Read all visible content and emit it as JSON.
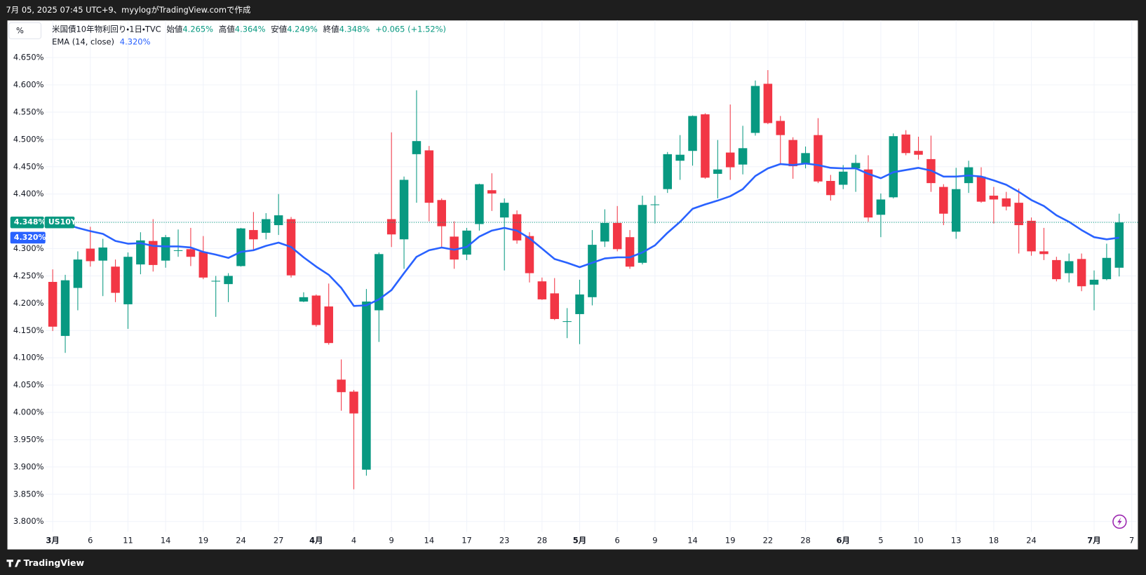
{
  "header": {
    "caption": "7月 05, 2025 07:45 UTC+9、myylogがTradingView.comで作成",
    "unit_button": "%",
    "brand": "TradingView"
  },
  "chart_data": {
    "type": "candlestick",
    "legend": {
      "title": "米国債10年物利回り・1日・TVC",
      "open_label": "始値",
      "open": "4.265%",
      "high_label": "高値",
      "high": "4.364%",
      "low_label": "安値",
      "low": "4.249%",
      "close_label": "終値",
      "close": "4.348%",
      "change": "+0.065 (+1.52%)"
    },
    "price_badge": "4.348%",
    "symbol": "US10Y",
    "ema_badge": "4.320%",
    "up_color": "#089981",
    "down_color": "#f23645",
    "grid": true,
    "ylim": [
      3.781,
      4.718
    ],
    "yticks": [
      {
        "value": 3.8,
        "label": "3.800%"
      },
      {
        "value": 3.85,
        "label": "3.850%"
      },
      {
        "value": 3.9,
        "label": "3.900%"
      },
      {
        "value": 3.95,
        "label": "3.950%"
      },
      {
        "value": 4.0,
        "label": "4.000%"
      },
      {
        "value": 4.05,
        "label": "4.050%"
      },
      {
        "value": 4.1,
        "label": "4.100%"
      },
      {
        "value": 4.15,
        "label": "4.150%"
      },
      {
        "value": 4.2,
        "label": "4.200%"
      },
      {
        "value": 4.25,
        "label": "4.250%"
      },
      {
        "value": 4.3,
        "label": "4.300%"
      },
      {
        "value": 4.35,
        "label": "4.350%"
      },
      {
        "value": 4.4,
        "label": "4.400%"
      },
      {
        "value": 4.45,
        "label": "4.450%"
      },
      {
        "value": 4.5,
        "label": "4.500%"
      },
      {
        "value": 4.55,
        "label": "4.550%"
      },
      {
        "value": 4.6,
        "label": "4.600%"
      },
      {
        "value": 4.65,
        "label": "4.650%"
      }
    ],
    "categories": [
      "3月",
      null,
      null,
      "6",
      null,
      null,
      "11",
      null,
      null,
      "14",
      null,
      null,
      "19",
      null,
      null,
      "24",
      null,
      null,
      "27",
      null,
      null,
      "4月",
      null,
      null,
      "4",
      null,
      null,
      "9",
      null,
      null,
      "14",
      null,
      null,
      "17",
      null,
      null,
      "23",
      null,
      null,
      "28",
      null,
      null,
      "5月",
      null,
      null,
      "6",
      null,
      null,
      "9",
      null,
      null,
      "14",
      null,
      null,
      "19",
      null,
      null,
      "22",
      null,
      null,
      "28",
      null,
      null,
      "6月",
      null,
      null,
      "5",
      null,
      null,
      "10",
      null,
      null,
      "13",
      null,
      null,
      "18",
      null,
      null,
      "24",
      null,
      null,
      null,
      null,
      "7月",
      null,
      null,
      "7"
    ],
    "open": [
      4.239,
      4.14,
      4.228,
      4.3,
      4.278,
      4.267,
      4.198,
      4.271,
      4.314,
      4.278,
      4.296,
      4.299,
      4.294,
      4.24,
      4.235,
      4.268,
      4.334,
      4.329,
      4.343,
      4.354,
      4.203,
      4.214,
      4.194,
      4.06,
      4.038,
      3.895,
      4.187,
      4.354,
      4.317,
      4.473,
      4.48,
      4.389,
      4.322,
      4.289,
      4.345,
      4.407,
      4.357,
      4.363,
      4.323,
      4.24,
      4.218,
      4.166,
      4.18,
      4.211,
      4.313,
      4.347,
      4.321,
      4.274,
      4.38,
      4.409,
      4.461,
      4.479,
      4.546,
      4.437,
      4.476,
      4.454,
      4.512,
      4.602,
      4.534,
      4.499,
      4.456,
      4.508,
      4.424,
      4.417,
      4.447,
      4.445,
      4.362,
      4.394,
      4.509,
      4.479,
      4.464,
      4.413,
      4.331,
      4.42,
      4.432,
      4.397,
      4.392,
      4.384,
      4.351,
      4.295,
      4.279,
      4.255,
      4.281,
      4.234,
      4.244,
      4.265,
      null
    ],
    "high": [
      4.262,
      4.252,
      4.295,
      4.34,
      4.318,
      4.28,
      4.293,
      4.33,
      4.354,
      4.325,
      4.335,
      4.338,
      4.323,
      4.25,
      4.255,
      4.338,
      4.367,
      4.365,
      4.4,
      4.358,
      4.22,
      4.216,
      4.236,
      4.097,
      4.041,
      4.226,
      4.293,
      4.513,
      4.432,
      4.59,
      4.488,
      4.392,
      4.35,
      4.338,
      4.419,
      4.438,
      4.392,
      4.37,
      4.33,
      4.247,
      4.246,
      4.191,
      4.243,
      4.334,
      4.372,
      4.378,
      4.334,
      4.397,
      4.397,
      4.477,
      4.508,
      4.544,
      4.548,
      4.499,
      4.564,
      4.525,
      4.608,
      4.627,
      4.543,
      4.504,
      4.487,
      4.539,
      4.435,
      4.453,
      4.472,
      4.471,
      4.401,
      4.511,
      4.517,
      4.505,
      4.507,
      4.418,
      4.448,
      4.461,
      4.449,
      4.413,
      4.404,
      4.41,
      4.357,
      4.338,
      4.285,
      4.291,
      4.291,
      4.26,
      4.309,
      4.364,
      null
    ],
    "low": [
      4.149,
      4.109,
      4.187,
      4.267,
      4.213,
      4.202,
      4.153,
      4.253,
      4.258,
      4.265,
      4.285,
      4.268,
      4.244,
      4.175,
      4.202,
      4.267,
      4.298,
      4.317,
      4.325,
      4.247,
      4.202,
      4.157,
      4.124,
      4.003,
      3.859,
      3.884,
      4.129,
      4.303,
      4.263,
      4.384,
      4.35,
      4.301,
      4.263,
      4.279,
      4.333,
      4.369,
      4.26,
      4.309,
      4.238,
      4.206,
      4.169,
      4.136,
      4.125,
      4.196,
      4.303,
      4.295,
      4.263,
      4.271,
      4.346,
      4.402,
      4.426,
      4.452,
      4.428,
      4.392,
      4.426,
      4.436,
      4.507,
      4.528,
      4.453,
      4.428,
      4.447,
      4.42,
      4.388,
      4.409,
      4.404,
      4.349,
      4.321,
      4.392,
      4.471,
      4.463,
      4.404,
      4.343,
      4.318,
      4.402,
      4.384,
      4.346,
      4.37,
      4.291,
      4.287,
      4.279,
      4.24,
      4.238,
      4.222,
      4.187,
      4.242,
      4.249,
      null
    ],
    "close": [
      4.157,
      4.242,
      4.28,
      4.277,
      4.302,
      4.219,
      4.285,
      4.315,
      4.27,
      4.321,
      4.297,
      4.285,
      4.247,
      4.241,
      4.25,
      4.337,
      4.317,
      4.354,
      4.361,
      4.251,
      4.211,
      4.16,
      4.127,
      4.037,
      3.998,
      4.203,
      4.29,
      4.326,
      4.426,
      4.497,
      4.384,
      4.341,
      4.28,
      4.333,
      4.418,
      4.401,
      4.384,
      4.315,
      4.255,
      4.207,
      4.171,
      4.167,
      4.216,
      4.307,
      4.347,
      4.299,
      4.267,
      4.38,
      4.381,
      4.473,
      4.472,
      4.543,
      4.43,
      4.445,
      4.449,
      4.484,
      4.598,
      4.53,
      4.508,
      4.451,
      4.475,
      4.423,
      4.398,
      4.441,
      4.457,
      4.357,
      4.39,
      4.506,
      4.475,
      4.472,
      4.42,
      4.364,
      4.409,
      4.449,
      4.386,
      4.39,
      4.377,
      4.343,
      4.295,
      4.29,
      4.244,
      4.277,
      4.231,
      4.243,
      4.283,
      4.348,
      null
    ],
    "series": [
      {
        "name": "EMA (14, close)",
        "color": "#2962ff",
        "last_label": "4.320%",
        "values": [
          4.355,
          4.345,
          4.338,
          4.332,
          4.327,
          4.314,
          4.309,
          4.31,
          4.305,
          4.304,
          4.304,
          4.302,
          4.294,
          4.289,
          4.283,
          4.294,
          4.297,
          4.305,
          4.311,
          4.303,
          4.284,
          4.267,
          4.252,
          4.228,
          4.195,
          4.196,
          4.207,
          4.224,
          4.255,
          4.285,
          4.297,
          4.302,
          4.298,
          4.303,
          4.322,
          4.333,
          4.338,
          4.333,
          4.319,
          4.3,
          4.281,
          4.274,
          4.266,
          4.274,
          4.282,
          4.284,
          4.284,
          4.293,
          4.306,
          4.329,
          4.349,
          4.373,
          4.381,
          4.388,
          4.396,
          4.409,
          4.433,
          4.447,
          4.455,
          4.453,
          4.456,
          4.453,
          4.448,
          4.447,
          4.447,
          4.437,
          4.429,
          4.44,
          4.444,
          4.448,
          4.443,
          4.432,
          4.432,
          4.434,
          4.432,
          4.425,
          4.417,
          4.404,
          4.389,
          4.378,
          4.361,
          4.349,
          4.334,
          4.321,
          4.317,
          4.32,
          null
        ]
      }
    ]
  }
}
